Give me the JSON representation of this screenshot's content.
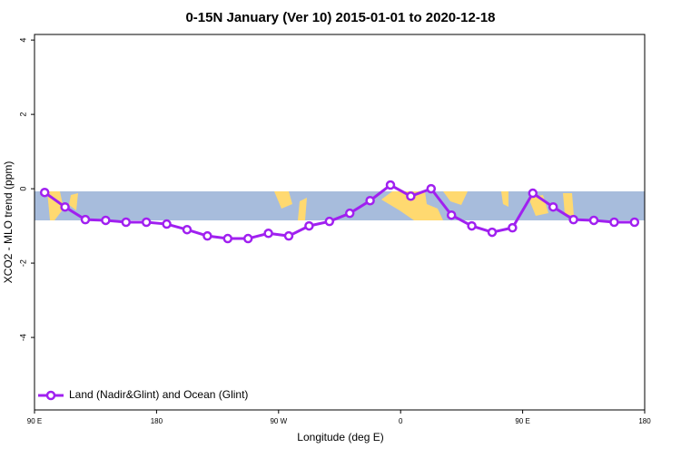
{
  "chart_data": {
    "type": "line",
    "title": "0-15N January (Ver 10)   2015-01-01 to 2020-12-18",
    "x_label": "Longitude (deg E)",
    "y_label": "XCO2 - MLO trend (ppm)",
    "x": [
      97.5,
      112.5,
      127.5,
      142.5,
      157.5,
      172.5,
      187.5,
      202.5,
      217.5,
      232.5,
      247.5,
      262.5,
      277.5,
      292.5,
      307.5,
      322.5,
      337.5,
      352.5,
      367.5,
      382.5,
      397.5,
      412.5,
      427.5,
      442.5,
      457.5,
      472.5,
      487.5,
      502.5,
      517.5,
      532.5
    ],
    "series": [
      {
        "name": "Land (Nadir&Glint) and Ocean (Glint)",
        "color": "#a020f0",
        "values": [
          -0.1,
          -0.49,
          -0.83,
          -0.85,
          -0.9,
          -0.9,
          -0.95,
          -1.1,
          -1.27,
          -1.34,
          -1.34,
          -1.2,
          -1.27,
          -1.0,
          -0.88,
          -0.66,
          -0.32,
          0.1,
          -0.2,
          0.0,
          -0.71,
          -1.0,
          -1.17,
          -1.05,
          -0.12,
          -0.49,
          -0.83,
          -0.85,
          -0.9,
          -0.9
        ]
      }
    ],
    "xlim": [
      90,
      540
    ],
    "ylim": [
      -5.95,
      4.15
    ],
    "xticks": [
      {
        "value": 90,
        "label": "90 E"
      },
      180,
      {
        "value": 270,
        "label": "90 W"
      },
      {
        "value": 360,
        "label": "0"
      },
      {
        "value": 450,
        "label": "90 E"
      },
      {
        "value": 540,
        "label": "180"
      }
    ],
    "yticks": [
      -4,
      -2,
      0,
      2,
      4
    ],
    "legend": "bottom-left"
  }
}
